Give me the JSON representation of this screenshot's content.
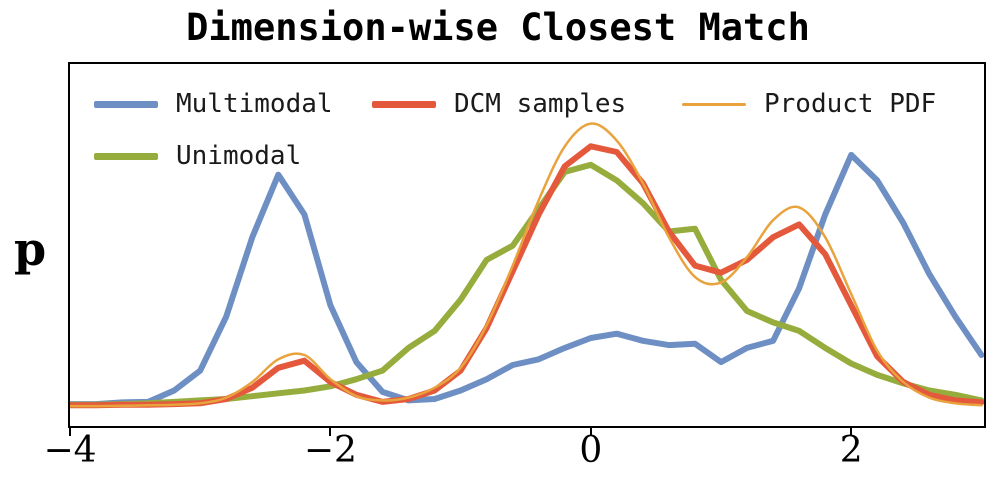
{
  "figure": {
    "title": "Dimension-wise Closest Match",
    "ylabel": "p"
  },
  "chart_data": {
    "type": "line",
    "title": "Dimension-wise Closest Match",
    "xlabel": "",
    "ylabel": "p",
    "xlim": [
      -4.0,
      3.02
    ],
    "ylim": [
      -0.065,
      1.21
    ],
    "grid": false,
    "legend_position": "upper-left-inside",
    "legend_columns": 3,
    "xticks": [
      -4,
      -2,
      0,
      2
    ],
    "xtick_labels": [
      "−4",
      "−2",
      "0",
      "2"
    ],
    "x": [
      -4.0,
      -3.8,
      -3.6,
      -3.4,
      -3.2,
      -3.0,
      -2.8,
      -2.6,
      -2.4,
      -2.2,
      -2.0,
      -1.8,
      -1.6,
      -1.4,
      -1.2,
      -1.0,
      -0.8,
      -0.6,
      -0.4,
      -0.2,
      0.0,
      0.2,
      0.4,
      0.6,
      0.8,
      1.0,
      1.2,
      1.4,
      1.6,
      1.8,
      2.0,
      2.2,
      2.4,
      2.6,
      2.8,
      3.0
    ],
    "series": [
      {
        "name": "Multimodal",
        "color": "#6e8fc3",
        "width": 6,
        "smooth": false,
        "values": [
          0.012,
          0.012,
          0.018,
          0.02,
          0.06,
          0.13,
          0.32,
          0.6,
          0.82,
          0.68,
          0.36,
          0.16,
          0.055,
          0.025,
          0.03,
          0.06,
          0.1,
          0.15,
          0.17,
          0.21,
          0.245,
          0.26,
          0.235,
          0.22,
          0.225,
          0.16,
          0.21,
          0.235,
          0.42,
          0.68,
          0.89,
          0.8,
          0.65,
          0.47,
          0.32,
          0.185
        ]
      },
      {
        "name": "Unimodal",
        "color": "#96ad3d",
        "width": 6,
        "smooth": false,
        "values": [
          0.01,
          0.01,
          0.012,
          0.015,
          0.02,
          0.025,
          0.03,
          0.04,
          0.05,
          0.06,
          0.075,
          0.1,
          0.13,
          0.21,
          0.27,
          0.38,
          0.52,
          0.57,
          0.7,
          0.83,
          0.855,
          0.8,
          0.72,
          0.62,
          0.63,
          0.45,
          0.34,
          0.3,
          0.27,
          0.21,
          0.155,
          0.115,
          0.085,
          0.06,
          0.045,
          0.025
        ]
      },
      {
        "name": "DCM samples",
        "color": "#e4593b",
        "width": 6,
        "smooth": false,
        "values": [
          0.008,
          0.008,
          0.01,
          0.01,
          0.012,
          0.015,
          0.03,
          0.07,
          0.14,
          0.165,
          0.09,
          0.045,
          0.02,
          0.03,
          0.06,
          0.13,
          0.28,
          0.48,
          0.68,
          0.85,
          0.92,
          0.9,
          0.79,
          0.62,
          0.5,
          0.475,
          0.52,
          0.6,
          0.645,
          0.54,
          0.36,
          0.18,
          0.09,
          0.045,
          0.025,
          0.018
        ]
      },
      {
        "name": "Product PDF",
        "color": "#e9a33d",
        "width": 2.5,
        "smooth": true,
        "values": [
          0.005,
          0.005,
          0.006,
          0.008,
          0.01,
          0.015,
          0.035,
          0.09,
          0.17,
          0.185,
          0.1,
          0.04,
          0.025,
          0.035,
          0.07,
          0.14,
          0.29,
          0.5,
          0.73,
          0.92,
          1.0,
          0.94,
          0.79,
          0.6,
          0.46,
          0.44,
          0.53,
          0.66,
          0.705,
          0.6,
          0.4,
          0.2,
          0.09,
          0.035,
          0.015,
          0.008
        ]
      }
    ]
  }
}
